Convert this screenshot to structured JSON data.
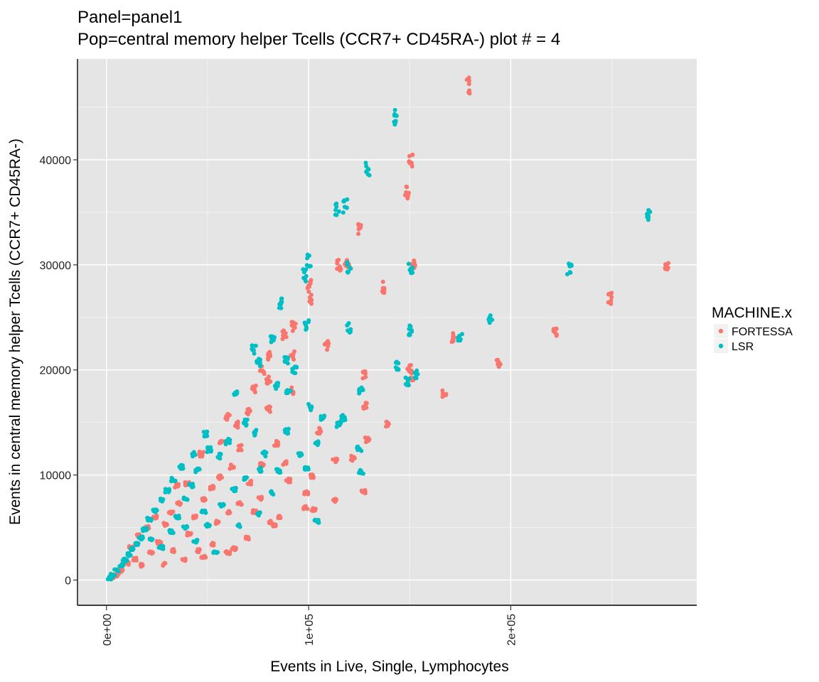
{
  "chart_data": {
    "type": "scatter",
    "title": "Panel=panel1",
    "subtitle": "Pop=central memory helper Tcells (CCR7+ CD45RA-) plot # = 4",
    "xlabel": "Events in Live, Single, Lymphocytes",
    "ylabel": "Events in central memory helper Tcells (CCR7+ CD45RA-)",
    "xlim": [
      -14000,
      292000
    ],
    "ylim": [
      -2400,
      49600
    ],
    "x_ticks": [
      0,
      100000,
      200000
    ],
    "x_tick_labels": [
      "0e+00",
      "1e+05",
      "2e+05"
    ],
    "y_ticks": [
      0,
      10000,
      20000,
      30000,
      40000
    ],
    "y_tick_labels": [
      "0",
      "10000",
      "20000",
      "30000",
      "40000"
    ],
    "grid": true,
    "legend": {
      "title": "MACHINE.x",
      "position": "right",
      "entries": [
        "FORTESSA",
        "LSR"
      ]
    },
    "colors": {
      "FORTESSA": "#F8766D",
      "LSR": "#00BFC4",
      "panel_bg": "#E5E5E5",
      "grid": "#FFFFFF"
    },
    "series": [
      {
        "name": "FORTESSA",
        "clusters": [
          [
            179000,
            46900
          ],
          [
            150500,
            39900
          ],
          [
            148500,
            36900
          ],
          [
            137000,
            27900
          ],
          [
            152000,
            30000
          ],
          [
            119000,
            29900
          ],
          [
            125500,
            33300
          ],
          [
            100500,
            28000
          ],
          [
            101000,
            26700
          ],
          [
            92500,
            24200
          ],
          [
            88000,
            23300
          ],
          [
            80500,
            21300
          ],
          [
            92000,
            21400
          ],
          [
            77000,
            20000
          ],
          [
            109000,
            22300
          ],
          [
            127500,
            19500
          ],
          [
            128000,
            16600
          ],
          [
            139000,
            14900
          ],
          [
            129000,
            13300
          ],
          [
            122000,
            11600
          ],
          [
            113000,
            11400
          ],
          [
            105000,
            14200
          ],
          [
            102000,
            9900
          ],
          [
            99000,
            8300
          ],
          [
            98500,
            6900
          ],
          [
            102500,
            6700
          ],
          [
            113000,
            7600
          ],
          [
            127000,
            8400
          ],
          [
            167000,
            17800
          ],
          [
            171000,
            23100
          ],
          [
            150000,
            20200
          ],
          [
            151000,
            19400
          ],
          [
            194000,
            20700
          ],
          [
            222000,
            23600
          ],
          [
            249000,
            26800
          ],
          [
            277000,
            29900
          ],
          [
            60000,
            15500
          ],
          [
            64000,
            14800
          ],
          [
            70000,
            16000
          ],
          [
            73000,
            18200
          ],
          [
            80000,
            16300
          ],
          [
            84000,
            13000
          ],
          [
            88000,
            11200
          ],
          [
            90000,
            9500
          ],
          [
            86000,
            6000
          ],
          [
            81000,
            5500
          ],
          [
            70000,
            4000
          ],
          [
            66000,
            7300
          ],
          [
            71000,
            9300
          ],
          [
            77000,
            11000
          ],
          [
            62000,
            10800
          ],
          [
            56000,
            9800
          ],
          [
            52000,
            8800
          ],
          [
            48000,
            7700
          ],
          [
            44000,
            6000
          ],
          [
            41000,
            4400
          ],
          [
            45000,
            2800
          ],
          [
            52000,
            3400
          ],
          [
            60000,
            2600
          ],
          [
            55000,
            5500
          ],
          [
            36000,
            7300
          ],
          [
            32000,
            6400
          ],
          [
            29000,
            5300
          ],
          [
            26000,
            3600
          ],
          [
            22000,
            2600
          ],
          [
            18000,
            1400
          ],
          [
            33000,
            2800
          ],
          [
            38000,
            1900
          ],
          [
            14000,
            2000
          ],
          [
            12000,
            3100
          ],
          [
            10000,
            1600
          ],
          [
            7000,
            900
          ],
          [
            5000,
            500
          ],
          [
            3000,
            300
          ],
          [
            16000,
            4200
          ],
          [
            20000,
            5000
          ],
          [
            24000,
            6000
          ],
          [
            40000,
            9200
          ],
          [
            47000,
            12000
          ],
          [
            57000,
            13200
          ],
          [
            66000,
            12600
          ],
          [
            73000,
            6500
          ],
          [
            92000,
            18000
          ],
          [
            80000,
            19000
          ],
          [
            115000,
            30000
          ],
          [
            60000,
            6500
          ],
          [
            76000,
            7800
          ],
          [
            83000,
            5200
          ],
          [
            63000,
            3000
          ],
          [
            48000,
            2200
          ],
          [
            28000,
            1500
          ],
          [
            35000,
            9000
          ]
        ]
      },
      {
        "name": "LSR",
        "clusters": [
          [
            143000,
            44000
          ],
          [
            129000,
            39300
          ],
          [
            114000,
            35300
          ],
          [
            118000,
            35700
          ],
          [
            120000,
            29800
          ],
          [
            150500,
            29800
          ],
          [
            100000,
            30400
          ],
          [
            98000,
            29000
          ],
          [
            86000,
            26300
          ],
          [
            99000,
            24300
          ],
          [
            120000,
            24000
          ],
          [
            150500,
            23800
          ],
          [
            73000,
            22000
          ],
          [
            75000,
            20700
          ],
          [
            82000,
            23000
          ],
          [
            144000,
            20400
          ],
          [
            153000,
            19600
          ],
          [
            149000,
            18900
          ],
          [
            190000,
            24800
          ],
          [
            175000,
            23000
          ],
          [
            229000,
            29600
          ],
          [
            268000,
            34600
          ],
          [
            89000,
            21000
          ],
          [
            84000,
            18500
          ],
          [
            90000,
            17800
          ],
          [
            101000,
            16500
          ],
          [
            107000,
            15500
          ],
          [
            117000,
            15400
          ],
          [
            126000,
            18000
          ],
          [
            125000,
            12500
          ],
          [
            115000,
            14800
          ],
          [
            104000,
            13000
          ],
          [
            96000,
            12000
          ],
          [
            99000,
            10700
          ],
          [
            89000,
            14200
          ],
          [
            85000,
            10400
          ],
          [
            78000,
            12000
          ],
          [
            74000,
            14000
          ],
          [
            69000,
            15000
          ],
          [
            64000,
            17600
          ],
          [
            60000,
            13200
          ],
          [
            56000,
            11800
          ],
          [
            51000,
            12400
          ],
          [
            49000,
            13900
          ],
          [
            45000,
            10400
          ],
          [
            42000,
            9000
          ],
          [
            39000,
            7700
          ],
          [
            43000,
            12000
          ],
          [
            37000,
            10800
          ],
          [
            33000,
            9600
          ],
          [
            30000,
            8500
          ],
          [
            27000,
            7600
          ],
          [
            24000,
            6600
          ],
          [
            21000,
            5800
          ],
          [
            19000,
            4800
          ],
          [
            17000,
            4000
          ],
          [
            15000,
            3400
          ],
          [
            13000,
            2900
          ],
          [
            11000,
            2400
          ],
          [
            9000,
            1900
          ],
          [
            7000,
            1400
          ],
          [
            5000,
            900
          ],
          [
            3000,
            500
          ],
          [
            1500,
            200
          ],
          [
            35000,
            6000
          ],
          [
            39000,
            5000
          ],
          [
            44000,
            3700
          ],
          [
            50000,
            5200
          ],
          [
            57000,
            7100
          ],
          [
            63000,
            8600
          ],
          [
            69000,
            9700
          ],
          [
            75000,
            6300
          ],
          [
            54000,
            2600
          ],
          [
            65000,
            5200
          ],
          [
            82000,
            8300
          ],
          [
            126000,
            10300
          ],
          [
            104000,
            5600
          ],
          [
            93000,
            20000
          ],
          [
            27000,
            3100
          ],
          [
            32000,
            4600
          ],
          [
            22000,
            3800
          ],
          [
            48000,
            6500
          ],
          [
            76000,
            10500
          ]
        ]
      }
    ]
  }
}
